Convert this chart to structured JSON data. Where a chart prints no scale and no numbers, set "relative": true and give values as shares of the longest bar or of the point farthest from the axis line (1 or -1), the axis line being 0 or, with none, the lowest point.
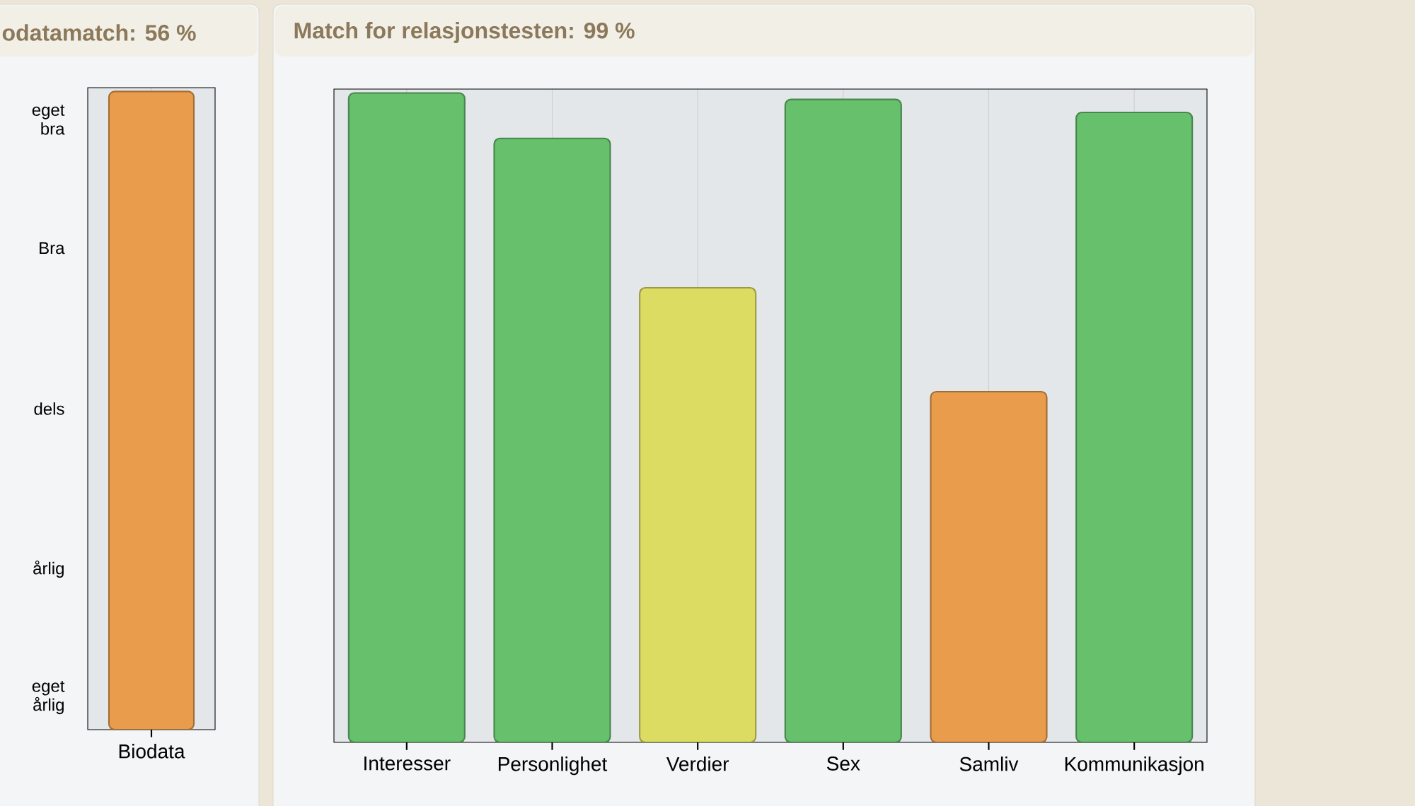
{
  "chart_data": [
    {
      "type": "bar",
      "title": "odatamatch: 56 %",
      "categories": [
        "Biodata"
      ],
      "values": [
        1
      ],
      "colors": [
        "#e99c4c"
      ],
      "relative": true,
      "grid": "x",
      "annotations": [
        "eget bra",
        "Bra",
        "dels",
        "årlig",
        "eget årlig"
      ]
    },
    {
      "type": "bar",
      "title": "Match for relasjonstesten: 99 %",
      "categories": [
        "Interesser",
        "Personlighet",
        "Verdier",
        "Sex",
        "Samliv",
        "Kommunikasjon"
      ],
      "values": [
        1,
        0.93,
        0.7,
        0.99,
        0.54,
        0.97
      ],
      "colors": [
        "#66c06c",
        "#66c06c",
        "#dcdc62",
        "#66c06c",
        "#e99c4c",
        "#66c06c"
      ],
      "relative": true,
      "grid": "x"
    }
  ]
}
